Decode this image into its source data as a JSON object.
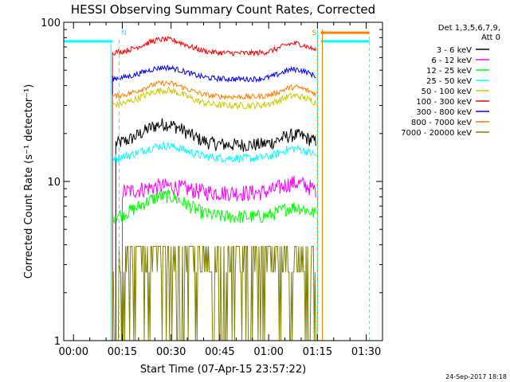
{
  "chart_data": {
    "type": "line",
    "title": "HESSI Observing Summary Count Rates, Corrected",
    "xlabel": "Start Time (07-Apr-15 23:57:22)",
    "ylabel": "Corrected Count Rate (s⁻¹ detector⁻¹)",
    "y_scale": "log",
    "ylim": [
      1,
      100
    ],
    "xlim_minutes": [
      -3,
      95
    ],
    "x_ticks": [
      {
        "m": 0,
        "label": "00:00"
      },
      {
        "m": 15,
        "label": "00:15"
      },
      {
        "m": 30,
        "label": "00:30"
      },
      {
        "m": 45,
        "label": "00:45"
      },
      {
        "m": 60,
        "label": "01:00"
      },
      {
        "m": 75,
        "label": "01:15"
      },
      {
        "m": 90,
        "label": "01:30"
      }
    ],
    "y_ticks": [
      {
        "v": 1,
        "label": "1"
      },
      {
        "v": 10,
        "label": "10"
      },
      {
        "v": 100,
        "label": "100"
      }
    ],
    "legend_header": [
      "Det 1,3,5,6,7,9,",
      "Att 0"
    ],
    "legend_placement": "right",
    "footer": "24-Sep-2017 18:18",
    "markers": [
      {
        "label": "N",
        "m": 14,
        "color": "#00ffff"
      },
      {
        "label": "S",
        "m": 75,
        "color": "#ff7f00"
      }
    ],
    "series": [
      {
        "name": "3 - 6 keV",
        "color": "#000000",
        "level": 17,
        "bump": 1.35,
        "noise": 0.1,
        "start": 13
      },
      {
        "name": "6 - 12 keV",
        "color": "#ff00ff",
        "level": 8.5,
        "bump": 1.1,
        "noise": 0.12,
        "start": 15
      },
      {
        "name": "12 - 25 keV",
        "color": "#00ff00",
        "level": 6.0,
        "bump": 1.35,
        "noise": 0.1,
        "start": 12
      },
      {
        "name": "25 - 50 keV",
        "color": "#00ffff",
        "level": 14,
        "bump": 1.2,
        "noise": 0.06,
        "start": 12
      },
      {
        "name": "50 - 100 keV",
        "color": "#cccc00",
        "level": 30,
        "bump": 1.25,
        "noise": 0.05,
        "start": 12
      },
      {
        "name": "100 - 300 keV",
        "color": "#ff0000",
        "level": 64,
        "bump": 1.22,
        "noise": 0.04,
        "start": 12
      },
      {
        "name": "300 - 800 keV",
        "color": "#0000ff",
        "level": 44,
        "bump": 1.18,
        "noise": 0.04,
        "start": 12
      },
      {
        "name": "800 - 7000 keV",
        "color": "#ff7f00",
        "level": 34,
        "bump": 1.22,
        "noise": 0.04,
        "start": 12
      },
      {
        "name": "7000 - 20000 keV",
        "color": "#808000",
        "level": 2.7,
        "bump": 1.3,
        "noise": 0.45,
        "start": 12
      }
    ]
  }
}
